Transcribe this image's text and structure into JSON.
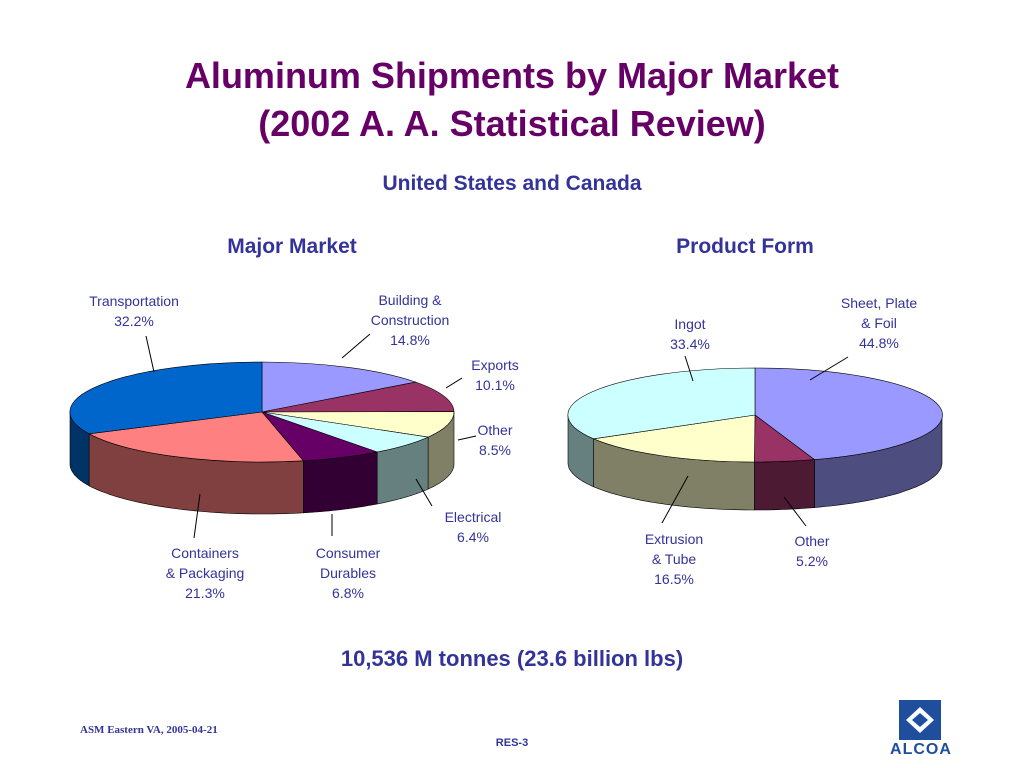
{
  "title_line1": "Aluminum Shipments by Major Market",
  "title_line2": "(2002 A. A. Statistical Review)",
  "subtitle": "United States and Canada",
  "total": "10,536 M tonnes (23.6 billion lbs)",
  "footer_left": "ASM Eastern VA, 2005-04-21",
  "footer_center": "RES-3",
  "logo_text": "ALCOA",
  "chart_data": [
    {
      "type": "pie",
      "title": "Major Market",
      "unit": "%",
      "slices": [
        {
          "label": "Building & Construction",
          "label_lines": [
            "Building &",
            "Construction",
            "14.8%"
          ],
          "value": 14.8,
          "color": "#9999ff"
        },
        {
          "label": "Exports",
          "label_lines": [
            "Exports",
            "10.1%"
          ],
          "value": 10.1,
          "color": "#993366"
        },
        {
          "label": "Other",
          "label_lines": [
            "Other",
            "8.5%"
          ],
          "value": 8.5,
          "color": "#ffffcc"
        },
        {
          "label": "Electrical",
          "label_lines": [
            "Electrical",
            "6.4%"
          ],
          "value": 6.4,
          "color": "#ccffff"
        },
        {
          "label": "Consumer Durables",
          "label_lines": [
            "Consumer",
            "Durables",
            "6.8%"
          ],
          "value": 6.8,
          "color": "#660066"
        },
        {
          "label": "Containers & Packaging",
          "label_lines": [
            "Containers",
            "& Packaging",
            "21.3%"
          ],
          "value": 21.3,
          "color": "#ff8080"
        },
        {
          "label": "Transportation",
          "label_lines": [
            "Transportation",
            "32.2%"
          ],
          "value": 32.2,
          "color": "#0066cc"
        }
      ]
    },
    {
      "type": "pie",
      "title": "Product Form",
      "unit": "%",
      "slices": [
        {
          "label": "Sheet, Plate & Foil",
          "label_lines": [
            "Sheet, Plate",
            "& Foil",
            "44.8%"
          ],
          "value": 44.8,
          "color": "#9999ff"
        },
        {
          "label": "Other",
          "label_lines": [
            "Other",
            "5.2%"
          ],
          "value": 5.2,
          "color": "#993366"
        },
        {
          "label": "Extrusion & Tube",
          "label_lines": [
            "Extrusion",
            "& Tube",
            "16.5%"
          ],
          "value": 16.5,
          "color": "#ffffcc"
        },
        {
          "label": "Ingot",
          "label_lines": [
            "Ingot",
            "33.4%"
          ],
          "value": 33.4,
          "color": "#ccffff"
        }
      ]
    }
  ]
}
